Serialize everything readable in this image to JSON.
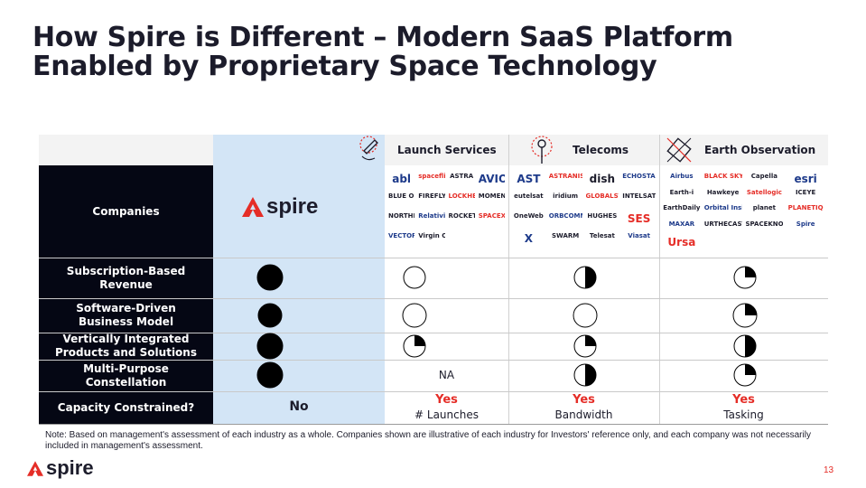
{
  "title": "How Spire is Different – Modern SaaS Platform Enabled by Proprietary Space Technology",
  "columns": [
    "Launch Services",
    "Telecoms",
    "Earth Observation"
  ],
  "spire_brand": "spire",
  "rows": [
    {
      "label": "Companies"
    },
    {
      "label": "Subscription-Based Revenue",
      "values": [
        1,
        0,
        0.5,
        0.25
      ]
    },
    {
      "label": "Software-Driven Business Model",
      "values": [
        1,
        0,
        0,
        0.25
      ]
    },
    {
      "label": "Vertically Integrated Products and Solutions",
      "values": [
        1,
        0.25,
        0.25,
        0.5
      ]
    },
    {
      "label": "Multi-Purpose Constellation",
      "values": [
        1,
        "NA",
        0.5,
        0.25
      ]
    },
    {
      "label": "Capacity Constrained?"
    }
  ],
  "na_text": "NA",
  "capacity": {
    "spire": "No",
    "launch": {
      "answer": "Yes",
      "detail": "# Launches"
    },
    "telecoms": {
      "answer": "Yes",
      "detail": "Bandwidth"
    },
    "eo": {
      "answer": "Yes",
      "detail": "Tasking"
    }
  },
  "logos": {
    "launch": [
      "abl",
      "spaceflight",
      "ASTRA",
      "AVIO",
      "BLUE ORIGIN",
      "FIREFLY",
      "LOCKHEED MARTIN",
      "MOMENTUS",
      "NORTHROP GRUMMAN",
      "Relativity",
      "ROCKET LAB",
      "SPACEX",
      "VECTOR",
      "Virgin Orbit"
    ],
    "telecoms": [
      "AST",
      "ASTRANIS",
      "dish",
      "ECHOSTAR",
      "eutelsat",
      "iridium",
      "GLOBALSTAR",
      "INTELSAT",
      "OneWeb",
      "ORBCOMM",
      "HUGHES",
      "SES",
      "X",
      "SWARM",
      "Telesat",
      "Viasat"
    ],
    "eo": [
      "Airbus",
      "BLACK SKY",
      "Capella",
      "esri",
      "Earth-i",
      "Hawkeye",
      "Satellogic",
      "ICEYE",
      "EarthDaily",
      "Orbital Insight",
      "planet",
      "PLANETIQ",
      "MAXAR",
      "URTHECAST",
      "SPACEKNOW",
      "Spire",
      "Ursa"
    ]
  },
  "note": "Note: Based on management's assessment of each industry as a whole. Companies shown are illustrative of each industry for Investors' reference only, and each company was not necessarily included in management's assessment.",
  "footer_brand": "spire",
  "page_number": "13",
  "colors": {
    "accent": "#e52d27",
    "dark": "#050714",
    "spire_col": "#d3e5f6"
  }
}
